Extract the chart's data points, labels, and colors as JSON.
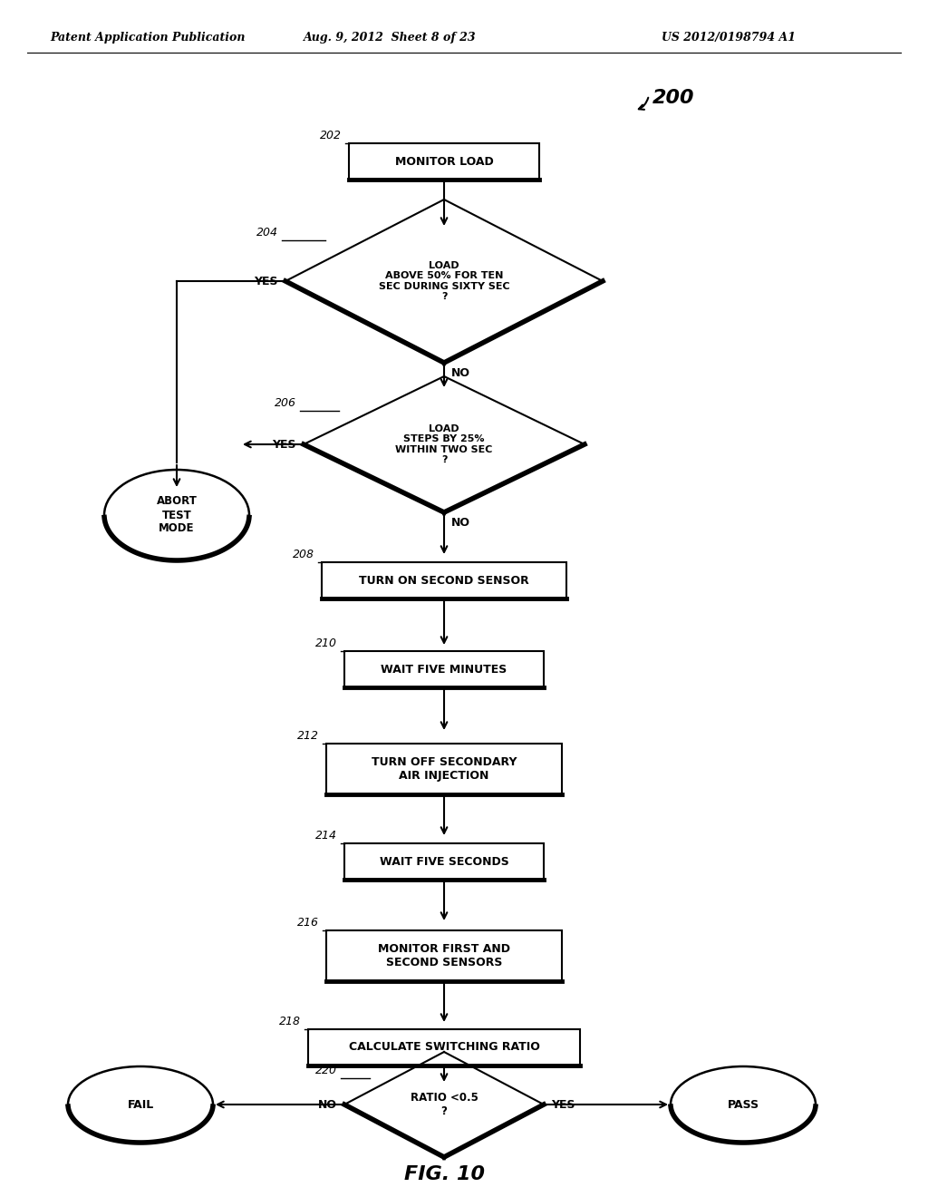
{
  "title": "FIG. 10",
  "header_left": "Patent Application Publication",
  "header_mid": "Aug. 9, 2012  Sheet 8 of 23",
  "header_right": "US 2012/0198794 A1",
  "bg_color": "#ffffff",
  "diagram_label": "200",
  "fig_width": 10.24,
  "fig_height": 13.2,
  "dpi": 100
}
